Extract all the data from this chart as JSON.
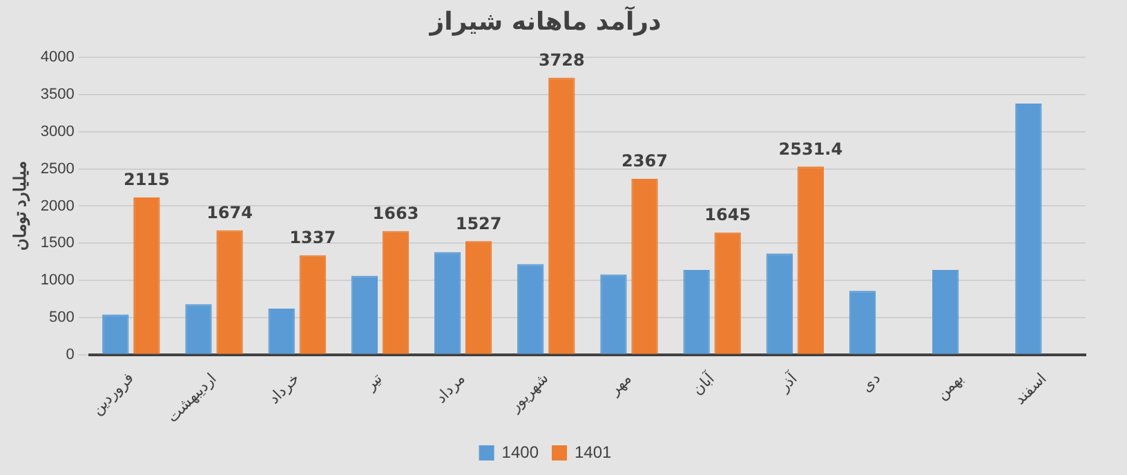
{
  "chart_data": {
    "type": "bar",
    "title": "درآمد ماهانه شیراز",
    "ylabel": "میلیارد تومان",
    "categories": [
      "فروردین",
      "اردیبهشت",
      "خرداد",
      "تیر",
      "مرداد",
      "شهریور",
      "مهر",
      "آبان",
      "آذر",
      "دی",
      "بهمن",
      "اسفند"
    ],
    "series": [
      {
        "name": "1400",
        "color": "#5b9bd5",
        "values": [
          540,
          680,
          620,
          1060,
          1380,
          1220,
          1080,
          1140,
          1360,
          860,
          1140,
          3380
        ]
      },
      {
        "name": "1401",
        "color": "#ed7d31",
        "values": [
          2115,
          1674,
          1337,
          1663,
          1527,
          3728,
          2367,
          1645,
          2531.4,
          null,
          null,
          null
        ],
        "value_labels": [
          "2115",
          "1674",
          "1337",
          "1663",
          "1527",
          "3728",
          "2367",
          "1645",
          "2531.4",
          null,
          null,
          null
        ]
      }
    ],
    "ylim": [
      0,
      4000
    ],
    "yticks": [
      0,
      500,
      1000,
      1500,
      2000,
      2500,
      3000,
      3500,
      4000
    ],
    "grid": "y",
    "legend": "bottom"
  }
}
